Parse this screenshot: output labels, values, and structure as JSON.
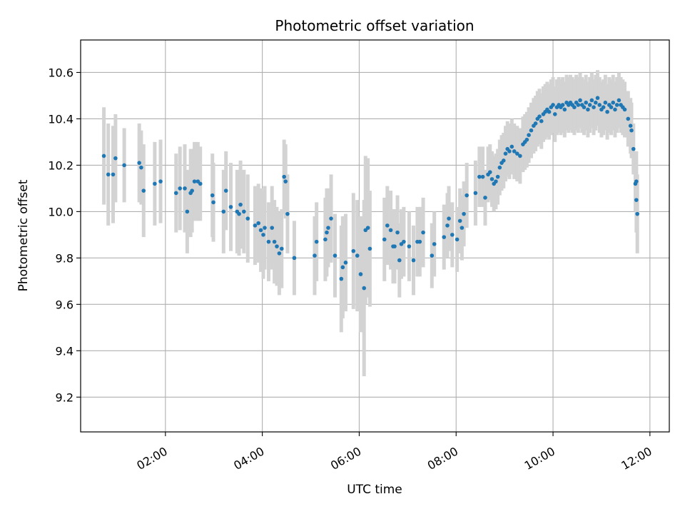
{
  "chart_data": {
    "type": "scatter",
    "title": "Photometric offset variation",
    "xlabel": "UTC time",
    "ylabel": "Photometric offset",
    "x_unit": "hours",
    "xlim": [
      0.25,
      12.4
    ],
    "ylim": [
      9.05,
      10.74
    ],
    "x_ticks": [
      {
        "value": 2,
        "label": "02:00"
      },
      {
        "value": 4,
        "label": "04:00"
      },
      {
        "value": 6,
        "label": "06:00"
      },
      {
        "value": 8,
        "label": "08:00"
      },
      {
        "value": 10,
        "label": "10:00"
      },
      {
        "value": 12,
        "label": "12:00"
      }
    ],
    "y_ticks": [
      {
        "value": 9.2,
        "label": "9.2"
      },
      {
        "value": 9.4,
        "label": "9.4"
      },
      {
        "value": 9.6,
        "label": "9.6"
      },
      {
        "value": 9.8,
        "label": "9.8"
      },
      {
        "value": 10.0,
        "label": "10.0"
      },
      {
        "value": 10.2,
        "label": "10.2"
      },
      {
        "value": 10.4,
        "label": "10.4"
      },
      {
        "value": 10.6,
        "label": "10.6"
      }
    ],
    "grid": true,
    "colors": {
      "points": "#1f77b4",
      "errorbars": "#d3d3d3",
      "grid": "#b0b0b0"
    },
    "series": [
      {
        "points": [
          [
            0.73,
            10.24,
            0.21
          ],
          [
            0.82,
            10.16,
            0.22
          ],
          [
            0.92,
            10.16,
            0.21
          ],
          [
            0.97,
            10.23,
            0.19
          ],
          [
            1.15,
            10.2,
            0.16
          ],
          [
            1.46,
            10.21,
            0.17
          ],
          [
            1.5,
            10.19,
            0.16
          ],
          [
            1.55,
            10.09,
            0.2
          ],
          [
            1.78,
            10.12,
            0.18
          ],
          [
            1.9,
            10.13,
            0.18
          ],
          [
            2.22,
            10.08,
            0.17
          ],
          [
            2.3,
            10.1,
            0.18
          ],
          [
            2.4,
            10.1,
            0.19
          ],
          [
            2.45,
            10.0,
            0.18
          ],
          [
            2.52,
            10.08,
            0.19
          ],
          [
            2.55,
            10.09,
            0.18
          ],
          [
            2.6,
            10.13,
            0.17
          ],
          [
            2.67,
            10.13,
            0.17
          ],
          [
            2.72,
            10.12,
            0.16
          ],
          [
            2.97,
            10.07,
            0.18
          ],
          [
            2.99,
            10.04,
            0.17
          ],
          [
            3.2,
            10.0,
            0.18
          ],
          [
            3.25,
            10.09,
            0.17
          ],
          [
            3.35,
            10.02,
            0.19
          ],
          [
            3.48,
            10.0,
            0.18
          ],
          [
            3.52,
            9.99,
            0.18
          ],
          [
            3.55,
            10.03,
            0.19
          ],
          [
            3.62,
            10.0,
            0.18
          ],
          [
            3.7,
            9.97,
            0.19
          ],
          [
            3.85,
            9.94,
            0.17
          ],
          [
            3.92,
            9.95,
            0.17
          ],
          [
            3.97,
            9.92,
            0.18
          ],
          [
            4.02,
            9.9,
            0.19
          ],
          [
            4.05,
            9.93,
            0.18
          ],
          [
            4.13,
            9.87,
            0.17
          ],
          [
            4.2,
            9.93,
            0.18
          ],
          [
            4.25,
            9.87,
            0.18
          ],
          [
            4.3,
            9.85,
            0.17
          ],
          [
            4.35,
            9.82,
            0.18
          ],
          [
            4.4,
            9.84,
            0.17
          ],
          [
            4.45,
            10.15,
            0.16
          ],
          [
            4.48,
            10.13,
            0.16
          ],
          [
            4.52,
            9.99,
            0.17
          ],
          [
            4.66,
            9.8,
            0.16
          ],
          [
            5.08,
            9.81,
            0.17
          ],
          [
            5.12,
            9.87,
            0.17
          ],
          [
            5.3,
            9.88,
            0.18
          ],
          [
            5.33,
            9.91,
            0.19
          ],
          [
            5.36,
            9.93,
            0.17
          ],
          [
            5.42,
            9.97,
            0.19
          ],
          [
            5.5,
            9.81,
            0.18
          ],
          [
            5.63,
            9.71,
            0.23
          ],
          [
            5.66,
            9.76,
            0.22
          ],
          [
            5.72,
            9.78,
            0.21
          ],
          [
            5.88,
            9.83,
            0.25
          ],
          [
            5.96,
            9.81,
            0.24
          ],
          [
            6.03,
            9.73,
            0.25
          ],
          [
            6.1,
            9.67,
            0.38
          ],
          [
            6.13,
            9.92,
            0.32
          ],
          [
            6.18,
            9.93,
            0.3
          ],
          [
            6.22,
            9.84,
            0.25
          ],
          [
            6.52,
            9.88,
            0.18
          ],
          [
            6.58,
            9.94,
            0.17
          ],
          [
            6.65,
            9.92,
            0.17
          ],
          [
            6.7,
            9.85,
            0.16
          ],
          [
            6.73,
            9.85,
            0.16
          ],
          [
            6.79,
            9.91,
            0.16
          ],
          [
            6.83,
            9.79,
            0.16
          ],
          [
            6.87,
            9.86,
            0.15
          ],
          [
            6.92,
            9.87,
            0.15
          ],
          [
            7.03,
            9.85,
            0.15
          ],
          [
            7.12,
            9.79,
            0.15
          ],
          [
            7.2,
            9.87,
            0.15
          ],
          [
            7.25,
            9.87,
            0.15
          ],
          [
            7.32,
            9.91,
            0.15
          ],
          [
            7.5,
            9.81,
            0.14
          ],
          [
            7.55,
            9.86,
            0.14
          ],
          [
            7.75,
            9.89,
            0.14
          ],
          [
            7.82,
            9.94,
            0.14
          ],
          [
            7.85,
            9.97,
            0.14
          ],
          [
            7.92,
            9.9,
            0.14
          ],
          [
            8.02,
            9.88,
            0.14
          ],
          [
            8.08,
            9.96,
            0.14
          ],
          [
            8.12,
            9.93,
            0.14
          ],
          [
            8.16,
            9.99,
            0.14
          ],
          [
            8.22,
            10.07,
            0.14
          ],
          [
            8.4,
            10.08,
            0.14
          ],
          [
            8.48,
            10.15,
            0.13
          ],
          [
            8.55,
            10.15,
            0.13
          ],
          [
            8.6,
            10.06,
            0.12
          ],
          [
            8.66,
            10.16,
            0.12
          ],
          [
            8.7,
            10.17,
            0.12
          ],
          [
            8.74,
            10.14,
            0.12
          ],
          [
            8.78,
            10.12,
            0.12
          ],
          [
            8.82,
            10.13,
            0.12
          ],
          [
            8.86,
            10.15,
            0.12
          ],
          [
            8.9,
            10.19,
            0.12
          ],
          [
            8.94,
            10.21,
            0.12
          ],
          [
            8.98,
            10.22,
            0.12
          ],
          [
            9.02,
            10.25,
            0.12
          ],
          [
            9.06,
            10.27,
            0.12
          ],
          [
            9.1,
            10.26,
            0.12
          ],
          [
            9.15,
            10.28,
            0.12
          ],
          [
            9.2,
            10.26,
            0.12
          ],
          [
            9.26,
            10.25,
            0.12
          ],
          [
            9.32,
            10.24,
            0.12
          ],
          [
            9.38,
            10.29,
            0.12
          ],
          [
            9.42,
            10.3,
            0.12
          ],
          [
            9.46,
            10.31,
            0.12
          ],
          [
            9.5,
            10.33,
            0.12
          ],
          [
            9.55,
            10.35,
            0.12
          ],
          [
            9.6,
            10.37,
            0.12
          ],
          [
            9.64,
            10.38,
            0.12
          ],
          [
            9.68,
            10.4,
            0.12
          ],
          [
            9.72,
            10.41,
            0.12
          ],
          [
            9.76,
            10.39,
            0.12
          ],
          [
            9.8,
            10.42,
            0.12
          ],
          [
            9.84,
            10.43,
            0.12
          ],
          [
            9.88,
            10.44,
            0.12
          ],
          [
            9.92,
            10.43,
            0.12
          ],
          [
            9.96,
            10.45,
            0.12
          ],
          [
            10.0,
            10.46,
            0.12
          ],
          [
            10.04,
            10.42,
            0.12
          ],
          [
            10.08,
            10.45,
            0.12
          ],
          [
            10.12,
            10.46,
            0.12
          ],
          [
            10.16,
            10.45,
            0.12
          ],
          [
            10.2,
            10.46,
            0.12
          ],
          [
            10.24,
            10.44,
            0.12
          ],
          [
            10.28,
            10.47,
            0.12
          ],
          [
            10.32,
            10.46,
            0.12
          ],
          [
            10.36,
            10.47,
            0.12
          ],
          [
            10.4,
            10.46,
            0.12
          ],
          [
            10.44,
            10.45,
            0.12
          ],
          [
            10.48,
            10.47,
            0.12
          ],
          [
            10.52,
            10.46,
            0.12
          ],
          [
            10.56,
            10.48,
            0.12
          ],
          [
            10.6,
            10.46,
            0.12
          ],
          [
            10.64,
            10.45,
            0.12
          ],
          [
            10.68,
            10.47,
            0.12
          ],
          [
            10.72,
            10.44,
            0.12
          ],
          [
            10.76,
            10.46,
            0.12
          ],
          [
            10.8,
            10.48,
            0.12
          ],
          [
            10.84,
            10.45,
            0.12
          ],
          [
            10.88,
            10.47,
            0.12
          ],
          [
            10.92,
            10.49,
            0.12
          ],
          [
            10.96,
            10.46,
            0.12
          ],
          [
            11.0,
            10.44,
            0.12
          ],
          [
            11.04,
            10.45,
            0.12
          ],
          [
            11.08,
            10.47,
            0.12
          ],
          [
            11.12,
            10.43,
            0.12
          ],
          [
            11.16,
            10.46,
            0.12
          ],
          [
            11.2,
            10.45,
            0.12
          ],
          [
            11.24,
            10.47,
            0.12
          ],
          [
            11.28,
            10.44,
            0.12
          ],
          [
            11.32,
            10.46,
            0.12
          ],
          [
            11.36,
            10.48,
            0.12
          ],
          [
            11.4,
            10.46,
            0.12
          ],
          [
            11.44,
            10.45,
            0.12
          ],
          [
            11.48,
            10.44,
            0.12
          ],
          [
            11.55,
            10.4,
            0.12
          ],
          [
            11.6,
            10.37,
            0.12
          ],
          [
            11.62,
            10.35,
            0.12
          ],
          [
            11.66,
            10.27,
            0.11
          ],
          [
            11.7,
            10.12,
            0.12
          ],
          [
            11.72,
            10.05,
            0.14
          ],
          [
            11.74,
            9.99,
            0.17
          ],
          [
            11.72,
            10.13,
            0.13
          ]
        ]
      }
    ]
  }
}
